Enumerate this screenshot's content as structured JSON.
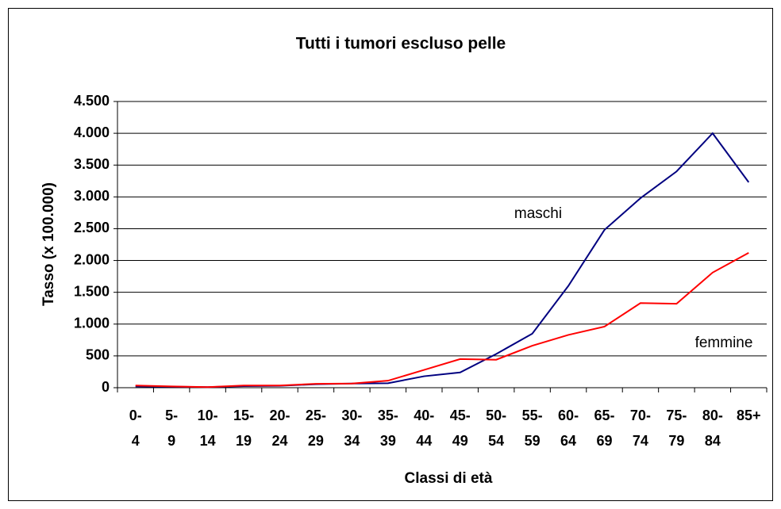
{
  "chart_data": {
    "type": "line",
    "title": "Tutti i tumori escluso pelle",
    "y_label": "Tasso (x 100.000)",
    "x_label": "Classi di età",
    "categories": [
      "0-4",
      "5-9",
      "10-14",
      "15-19",
      "20-24",
      "25-29",
      "30-34",
      "35-39",
      "40-44",
      "45-49",
      "50-54",
      "55-59",
      "60-64",
      "65-69",
      "70-74",
      "75-79",
      "80-84",
      "85+"
    ],
    "series": [
      {
        "name": "maschi",
        "color": "#000080",
        "values": [
          20,
          15,
          10,
          25,
          30,
          55,
          65,
          70,
          180,
          240,
          530,
          850,
          1600,
          2480,
          2980,
          3400,
          4000,
          3230
        ]
      },
      {
        "name": "femmine",
        "color": "#ff0000",
        "values": [
          35,
          20,
          10,
          35,
          35,
          60,
          65,
          110,
          280,
          450,
          440,
          660,
          830,
          960,
          1330,
          1320,
          1810,
          2120
        ]
      }
    ],
    "ylim": [
      0,
      4500
    ],
    "yticks": [
      0,
      500,
      {
        "value": 1000,
        "label": "1.000"
      },
      {
        "value": 1500,
        "label": "1.500"
      },
      {
        "value": 2000,
        "label": "2.000"
      },
      {
        "value": 2500,
        "label": "2.500"
      },
      {
        "value": 3000,
        "label": "3.000"
      },
      {
        "value": 3500,
        "label": "3.500"
      },
      {
        "value": 4000,
        "label": "4.000"
      },
      {
        "value": 4500,
        "label": "4.500"
      }
    ],
    "grid": true
  }
}
